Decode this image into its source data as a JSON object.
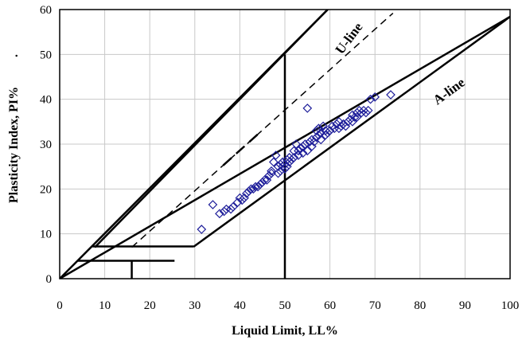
{
  "chart_data": {
    "type": "scatter",
    "xlabel": "Liquid Limit, LL%",
    "ylabel": "Plasticity Index, PI%",
    "ylabel_suffix": ".",
    "xlim": [
      0,
      100
    ],
    "ylim": [
      0,
      60
    ],
    "xticks": [
      0,
      10,
      20,
      30,
      40,
      50,
      60,
      70,
      80,
      90,
      100
    ],
    "yticks": [
      0,
      10,
      20,
      30,
      40,
      50,
      60
    ],
    "grid": true,
    "marker": "diamond-open",
    "marker_color": "#1f1f9a",
    "annotations": [
      {
        "text": "U-line",
        "x": 65,
        "y": 53,
        "rotation": -53
      },
      {
        "text": "A-line",
        "x": 87,
        "y": 41,
        "rotation": -36
      }
    ],
    "reference_lines": [
      {
        "name": "U-line",
        "style": "dashed",
        "points": [
          [
            16,
            7
          ],
          [
            74,
            59.2
          ]
        ]
      },
      {
        "name": "A-line",
        "style": "solid",
        "points": [
          [
            29.7,
            7.1
          ],
          [
            100,
            58.4
          ]
        ]
      },
      {
        "name": "boundary-upper",
        "style": "solid",
        "points": [
          [
            7.8,
            7
          ],
          [
            59.5,
            60
          ]
        ]
      },
      {
        "name": "boundary-lower",
        "style": "solid",
        "points": [
          [
            0,
            0
          ],
          [
            59.5,
            60
          ]
        ]
      },
      {
        "name": "boundary-A",
        "style": "solid",
        "points": [
          [
            0,
            0
          ],
          [
            100,
            58.4
          ]
        ]
      },
      {
        "name": "LL50",
        "style": "solid",
        "points": [
          [
            50,
            0
          ],
          [
            50,
            50
          ]
        ]
      },
      {
        "name": "PI7",
        "style": "solid",
        "points": [
          [
            7.3,
            7.2
          ],
          [
            29.7,
            7.2
          ]
        ]
      },
      {
        "name": "PI4",
        "style": "solid",
        "points": [
          [
            4,
            4
          ],
          [
            25.5,
            4
          ]
        ]
      },
      {
        "name": "LL16",
        "style": "solid",
        "points": [
          [
            16,
            0
          ],
          [
            16,
            4
          ]
        ]
      }
    ],
    "points": [
      [
        31.5,
        11
      ],
      [
        34,
        16.5
      ],
      [
        35.5,
        14.5
      ],
      [
        36.5,
        15
      ],
      [
        37,
        15.5
      ],
      [
        38,
        15.5
      ],
      [
        38.5,
        16
      ],
      [
        39.5,
        17
      ],
      [
        40,
        18
      ],
      [
        40.5,
        17.5
      ],
      [
        41,
        18
      ],
      [
        41.5,
        19
      ],
      [
        42,
        19.5
      ],
      [
        42.5,
        20
      ],
      [
        43,
        20
      ],
      [
        43.5,
        20.5
      ],
      [
        44,
        20.5
      ],
      [
        44.5,
        21
      ],
      [
        45,
        21.5
      ],
      [
        45.5,
        22
      ],
      [
        46,
        22
      ],
      [
        46.5,
        23
      ],
      [
        47,
        23.5
      ],
      [
        47,
        24
      ],
      [
        47.5,
        26
      ],
      [
        48,
        27.5
      ],
      [
        48.5,
        23.5
      ],
      [
        48.5,
        25
      ],
      [
        49,
        24
      ],
      [
        49,
        25.5
      ],
      [
        49.5,
        25
      ],
      [
        49.5,
        26
      ],
      [
        50,
        24.5
      ],
      [
        50,
        25.5
      ],
      [
        50.5,
        25
      ],
      [
        50.5,
        26.5
      ],
      [
        51,
        26
      ],
      [
        51,
        27
      ],
      [
        51.5,
        26.5
      ],
      [
        52,
        27
      ],
      [
        52,
        28.5
      ],
      [
        52.5,
        30
      ],
      [
        53,
        27.5
      ],
      [
        53,
        28.5
      ],
      [
        53.5,
        29
      ],
      [
        54,
        28
      ],
      [
        54,
        29.5
      ],
      [
        54.5,
        30
      ],
      [
        55,
        28.5
      ],
      [
        55,
        38
      ],
      [
        55.5,
        30.5
      ],
      [
        56,
        29.5
      ],
      [
        56,
        31
      ],
      [
        56.5,
        30.5
      ],
      [
        57,
        31.5
      ],
      [
        57,
        33
      ],
      [
        57.5,
        32
      ],
      [
        57.5,
        33.5
      ],
      [
        58,
        31
      ],
      [
        58,
        32.5
      ],
      [
        58.5,
        34
      ],
      [
        59,
        32
      ],
      [
        59,
        33
      ],
      [
        59.5,
        32.5
      ],
      [
        60,
        33
      ],
      [
        60.5,
        34
      ],
      [
        61,
        33.5
      ],
      [
        61.5,
        34.5
      ],
      [
        62,
        33.5
      ],
      [
        62,
        35
      ],
      [
        62.5,
        34
      ],
      [
        63,
        34.5
      ],
      [
        63.5,
        34
      ],
      [
        64,
        35
      ],
      [
        64.5,
        35.5
      ],
      [
        65,
        35
      ],
      [
        65,
        36.5
      ],
      [
        65.5,
        36
      ],
      [
        66,
        36
      ],
      [
        66,
        37
      ],
      [
        66.5,
        37.5
      ],
      [
        67,
        37
      ],
      [
        67.5,
        37.5
      ],
      [
        68,
        37
      ],
      [
        68.5,
        37.5
      ],
      [
        69,
        40
      ],
      [
        70,
        40.5
      ],
      [
        73.5,
        41
      ]
    ]
  }
}
